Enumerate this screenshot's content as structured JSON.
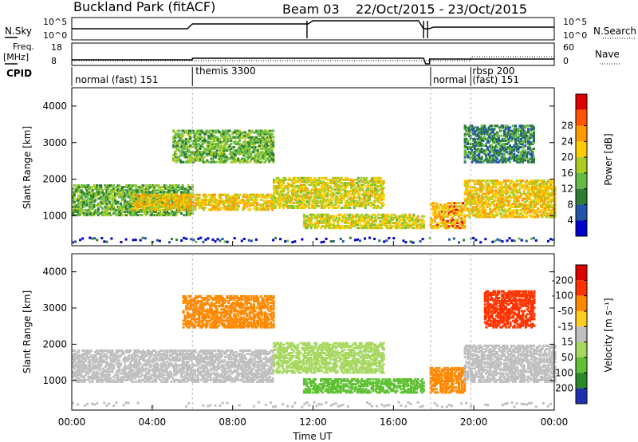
{
  "header": {
    "station": "Buckland Park (fitACF)",
    "beam": "Beam 03",
    "date_range": "22/Oct/2015 - 23/Oct/2015"
  },
  "strip": {
    "nsky_label": "N.Sky",
    "nsearch_label": "N.Search",
    "nsky_ticks": [
      "10^5",
      "10^0"
    ],
    "nsearch_ticks": [
      "10^5",
      "10^0"
    ],
    "freq_label_line1": "Freq.",
    "freq_label_line2": "[MHz]",
    "freq_ticks": [
      "18",
      "8"
    ],
    "nave_label": "Nave",
    "nave_ticks": [
      "60",
      "0"
    ],
    "cpid_label": "CPID",
    "cpid_segments": [
      {
        "text": "normal (fast) 151",
        "start_h": 0
      },
      {
        "text": "themis 3300",
        "start_h": 6
      },
      {
        "text": "normal",
        "start_h": 17.85
      },
      {
        "text": "rbsp 200",
        "start_h": 19.85
      },
      {
        "text": "(fast) 151",
        "start_h": 19.85
      }
    ]
  },
  "chart_data": [
    {
      "type": "heatmap",
      "title": "",
      "xlabel": "Time UT",
      "ylabel": "Slant Range [km]",
      "x_range_hours": [
        0,
        24
      ],
      "x_ticks": [
        "00:00",
        "04:00",
        "08:00",
        "12:00",
        "16:00",
        "20:00",
        "00:00"
      ],
      "y_range_km": [
        180,
        4500
      ],
      "y_ticks": [
        1000,
        2000,
        3000,
        4000
      ],
      "colorbar": {
        "label": "Power [dB]",
        "ticks": [
          4,
          8,
          12,
          16,
          20,
          24,
          28
        ],
        "colors": [
          "#0000cc",
          "#2255aa",
          "#2e7d32",
          "#66bb44",
          "#aacc22",
          "#ffcc00",
          "#ff9900",
          "#ff5500",
          "#dd0000"
        ]
      },
      "echo_regions": [
        {
          "t0": 0.0,
          "t1": 6.0,
          "r0": 1050,
          "r1": 1900,
          "value": 14
        },
        {
          "t0": 3.0,
          "t1": 10.0,
          "r0": 1200,
          "r1": 1650,
          "value": 22
        },
        {
          "t0": 10.0,
          "t1": 15.5,
          "r0": 1250,
          "r1": 2100,
          "value": 20
        },
        {
          "t0": 5.0,
          "t1": 10.0,
          "r0": 2500,
          "r1": 3400,
          "value": 14
        },
        {
          "t0": 11.5,
          "t1": 17.5,
          "r0": 700,
          "r1": 1100,
          "value": 20
        },
        {
          "t0": 17.8,
          "t1": 19.5,
          "r0": 700,
          "r1": 1400,
          "value": 24
        },
        {
          "t0": 19.5,
          "t1": 24.0,
          "r0": 1000,
          "r1": 2000,
          "value": 22
        },
        {
          "t0": 19.5,
          "t1": 23.0,
          "r0": 2500,
          "r1": 3500,
          "value": 10
        }
      ]
    },
    {
      "type": "heatmap",
      "title": "",
      "xlabel": "Time UT",
      "ylabel": "Slant Range [km]",
      "x_range_hours": [
        0,
        24
      ],
      "x_ticks": [
        "00:00",
        "04:00",
        "08:00",
        "12:00",
        "16:00",
        "20:00",
        "00:00"
      ],
      "y_range_km": [
        180,
        4500
      ],
      "y_ticks": [
        1000,
        2000,
        3000,
        4000
      ],
      "colorbar": {
        "label": "Velocity [m s⁻¹]",
        "ticks": [
          "200",
          "100",
          "50",
          "15",
          "-15",
          "-50",
          "-100",
          "-200"
        ],
        "colors": [
          "#1f2fb0",
          "#2a8a2a",
          "#5ec032",
          "#a6d860",
          "#bfbfbf",
          "#ffcc22",
          "#ff8800",
          "#ff3300",
          "#dd0000"
        ]
      },
      "echo_regions": [
        {
          "t0": 0.0,
          "t1": 10.0,
          "r0": 1000,
          "r1": 1900,
          "value": 0
        },
        {
          "t0": 10.0,
          "t1": 15.5,
          "r0": 1250,
          "r1": 2100,
          "value": 20
        },
        {
          "t0": 5.5,
          "t1": 10.0,
          "r0": 2500,
          "r1": 3400,
          "value": -60
        },
        {
          "t0": 11.5,
          "t1": 17.5,
          "r0": 700,
          "r1": 1100,
          "value": 40
        },
        {
          "t0": 17.8,
          "t1": 19.5,
          "r0": 700,
          "r1": 1400,
          "value": -60
        },
        {
          "t0": 19.5,
          "t1": 24.0,
          "r0": 1000,
          "r1": 2000,
          "value": 0
        },
        {
          "t0": 20.5,
          "t1": 23.0,
          "r0": 2500,
          "r1": 3500,
          "value": -120
        }
      ]
    }
  ]
}
